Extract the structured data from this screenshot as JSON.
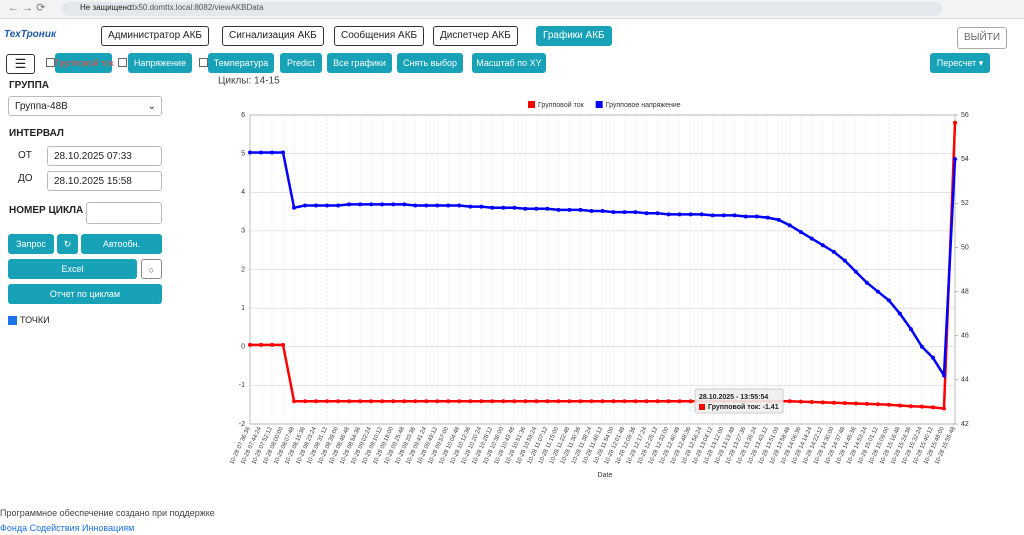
{
  "browser": {
    "security": "Не защищено",
    "url": "ttx50.domttx.local:8082/viewAKBData"
  },
  "nav": {
    "items": [
      "Администратор АКБ",
      "Сигнализация АКБ",
      "Сообщения АКБ",
      "Диспетчер АКБ",
      "Графики АКБ"
    ],
    "logout": "ВЫЙТИ"
  },
  "toolbar": {
    "checks": [
      "Групповой ток",
      "Напряжение",
      "Температура"
    ],
    "buttons": [
      "Predict",
      "Все графики",
      "Снять выбор",
      "Масштаб по XY"
    ],
    "recalc": "Пересчет"
  },
  "sidebar": {
    "group_label": "ГРУППА",
    "group": "Группа-48В",
    "interval_label": "ИНТЕРВАЛ",
    "from_label": "ОТ",
    "from": "28.10.2025 07:33",
    "to_label": "ДО",
    "to": "28.10.2025 15:58",
    "cycle_label": "НОМЕР ЦИКЛА",
    "request": "Запрос",
    "refresh": "↻",
    "auto": "Автообн.",
    "excel": "Excel",
    "excel_opt": "○",
    "report": "Отчет по циклам",
    "points": "ТОЧКИ"
  },
  "chart_data": {
    "type": "line",
    "subtitle": "Циклы: 14-15",
    "xlabel": "Date",
    "grid": true,
    "categories": [
      "10-28 07:36:36",
      "10-28 07:44:24",
      "10-28 07:52:12",
      "10-28 08:00:00",
      "10-28 08:07:48",
      "10-28 08:15:36",
      "10-28 08:23:24",
      "10-28 08:31:12",
      "10-28 08:39:00",
      "10-28 08:46:48",
      "10-28 08:54:36",
      "10-28 09:02:24",
      "10-28 09:10:12",
      "10-28 09:18:00",
      "10-28 09:25:48",
      "10-28 09:33:36",
      "10-28 09:41:24",
      "10-28 09:49:12",
      "10-28 09:57:00",
      "10-28 10:04:48",
      "10-28 10:12:36",
      "10-28 10:20:24",
      "10-28 10:28:12",
      "10-28 10:36:00",
      "10-28 10:43:48",
      "10-28 10:51:36",
      "10-28 10:59:24",
      "10-28 11:07:12",
      "10-28 11:15:00",
      "10-28 11:22:48",
      "10-28 11:30:36",
      "10-28 11:38:24",
      "10-28 11:46:12",
      "10-28 11:54:00",
      "10-28 12:01:48",
      "10-28 12:09:36",
      "10-28 12:17:24",
      "10-28 12:25:12",
      "10-28 12:33:00",
      "10-28 12:40:48",
      "10-28 12:48:36",
      "10-28 12:56:24",
      "10-28 13:04:12",
      "10-28 13:12:00",
      "10-28 13:19:48",
      "10-28 13:27:36",
      "10-28 13:35:24",
      "10-28 13:43:12",
      "10-28 13:51:00",
      "10-28 13:58:48",
      "10-28 14:06:36",
      "10-28 14:14:24",
      "10-28 14:22:12",
      "10-28 14:30:00",
      "10-28 14:37:48",
      "10-28 14:45:36",
      "10-28 14:53:24",
      "10-28 15:01:12",
      "10-28 15:09:00",
      "10-28 15:16:48",
      "10-28 15:24:36",
      "10-28 15:32:24",
      "10-28 15:40:12",
      "10-28 15:48:00",
      "10-28 15:55:48"
    ],
    "series": [
      {
        "name": "Групповой ток",
        "color": "#ff0000",
        "values": [
          0.05,
          0.05,
          0.05,
          0.05,
          -1.41,
          -1.41,
          -1.41,
          -1.41,
          -1.41,
          -1.41,
          -1.41,
          -1.41,
          -1.41,
          -1.41,
          -1.41,
          -1.41,
          -1.41,
          -1.41,
          -1.41,
          -1.41,
          -1.41,
          -1.41,
          -1.41,
          -1.41,
          -1.41,
          -1.41,
          -1.41,
          -1.41,
          -1.41,
          -1.41,
          -1.41,
          -1.41,
          -1.41,
          -1.41,
          -1.41,
          -1.41,
          -1.41,
          -1.41,
          -1.41,
          -1.41,
          -1.41,
          -1.41,
          -1.41,
          -1.41,
          -1.41,
          -1.41,
          -1.41,
          -1.41,
          -1.41,
          -1.41,
          -1.42,
          -1.43,
          -1.44,
          -1.45,
          -1.46,
          -1.47,
          -1.48,
          -1.49,
          -1.5,
          -1.52,
          -1.54,
          -1.55,
          -1.57,
          -1.6,
          5.8
        ]
      },
      {
        "name": "Групповое напряжение",
        "color": "#0000ff",
        "axis": "y2",
        "values": [
          54.3,
          54.3,
          54.3,
          54.3,
          51.8,
          51.9,
          51.9,
          51.9,
          51.9,
          51.95,
          51.95,
          51.95,
          51.95,
          51.95,
          51.95,
          51.9,
          51.9,
          51.9,
          51.9,
          51.9,
          51.85,
          51.85,
          51.8,
          51.8,
          51.8,
          51.75,
          51.75,
          51.75,
          51.7,
          51.7,
          51.7,
          51.65,
          51.65,
          51.6,
          51.6,
          51.6,
          51.55,
          51.55,
          51.5,
          51.5,
          51.5,
          51.5,
          51.45,
          51.45,
          51.45,
          51.4,
          51.4,
          51.35,
          51.25,
          51.0,
          50.7,
          50.4,
          50.1,
          49.8,
          49.4,
          48.9,
          48.4,
          48.0,
          47.6,
          47.0,
          46.3,
          45.5,
          45.0,
          44.2,
          54.0
        ]
      }
    ],
    "ylim": [
      -2,
      6
    ],
    "yticks": [
      -2,
      -1,
      0,
      1,
      2,
      3,
      4,
      5,
      6
    ],
    "y2lim": [
      42,
      56
    ],
    "y2ticks": [
      42,
      44,
      46,
      48,
      50,
      52,
      54,
      56
    ],
    "tooltip": {
      "title": "28.10.2025 - 13:55:54",
      "label": "Групповой ток: -1.41"
    }
  },
  "footer": {
    "text": "Программное обеспечение создано при поддержке",
    "link": "Фонда Содействия Инновациям"
  }
}
